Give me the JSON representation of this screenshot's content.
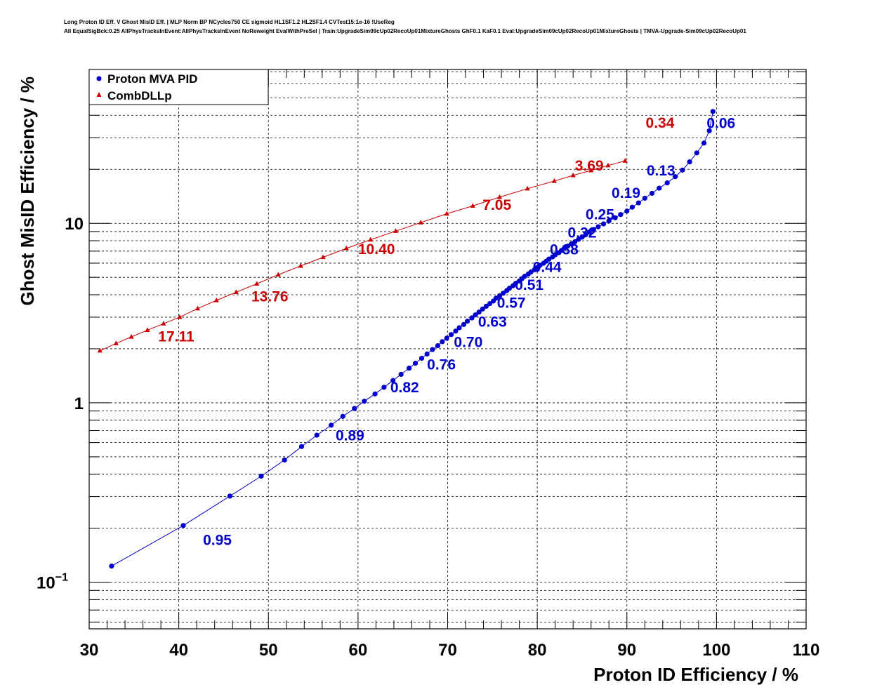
{
  "header": {
    "title_line1": "Long Proton ID Eff. V Ghost MisID Eff. | MLP Norm BP NCycles750 CE sigmoid HL1SF1.2 HL2SF1.4 CVTest15:1e-16 !UseReg",
    "title_line2": "All EqualSigBck:0.25 AllPhysTracksInEvent:AllPhysTracksInEvent NoReweight EvalWithPreSel | Train:UpgradeSim09cUp02RecoUp01MixtureGhosts GhF0.1 KaF0.1 Eval:UpgradeSim09cUp02RecoUp01MixtureGhosts | TMVA-Upgrade-Sim09cUp02RecoUp01"
  },
  "chart_data": {
    "type": "line",
    "xlabel": "Proton ID Efficiency / %",
    "ylabel": "Ghost MisID Efficiency / %",
    "xlim": [
      30,
      110
    ],
    "ylim": [
      0.055,
      72
    ],
    "yscale": "log",
    "grid": true,
    "legend_position": "top-left",
    "x_ticks": [
      "30",
      "40",
      "50",
      "60",
      "70",
      "80",
      "90",
      "100",
      "110"
    ],
    "y_ticks": [
      {
        "value": 0.1,
        "base": "10",
        "exp": "−1"
      },
      {
        "value": 1,
        "base": "1",
        "exp": ""
      },
      {
        "value": 10,
        "base": "10",
        "exp": ""
      }
    ],
    "series": [
      {
        "name": "Proton MVA PID",
        "color": "#0000cc",
        "marker": "circle",
        "points": [
          [
            32.5,
            0.123
          ],
          [
            40.5,
            0.207
          ],
          [
            45.7,
            0.302
          ],
          [
            49.2,
            0.39
          ],
          [
            51.8,
            0.48
          ],
          [
            53.7,
            0.57
          ],
          [
            55.4,
            0.66
          ],
          [
            57.0,
            0.75
          ],
          [
            58.3,
            0.84
          ],
          [
            59.6,
            0.93
          ],
          [
            60.7,
            1.02
          ],
          [
            61.9,
            1.12
          ],
          [
            62.9,
            1.22
          ],
          [
            63.9,
            1.33
          ],
          [
            64.8,
            1.44
          ],
          [
            65.7,
            1.56
          ],
          [
            66.4,
            1.66
          ],
          [
            67.1,
            1.77
          ],
          [
            67.7,
            1.87
          ],
          [
            68.3,
            1.98
          ],
          [
            68.9,
            2.08
          ],
          [
            69.4,
            2.19
          ],
          [
            69.9,
            2.29
          ],
          [
            70.4,
            2.4
          ],
          [
            70.9,
            2.51
          ],
          [
            71.3,
            2.62
          ],
          [
            71.8,
            2.73
          ],
          [
            72.2,
            2.85
          ],
          [
            72.7,
            2.97
          ],
          [
            73.1,
            3.09
          ],
          [
            73.5,
            3.2
          ],
          [
            73.9,
            3.33
          ],
          [
            74.3,
            3.45
          ],
          [
            74.7,
            3.57
          ],
          [
            75.1,
            3.69
          ],
          [
            75.4,
            3.83
          ],
          [
            75.8,
            3.95
          ],
          [
            76.2,
            4.08
          ],
          [
            76.6,
            4.22
          ],
          [
            76.9,
            4.35
          ],
          [
            77.3,
            4.49
          ],
          [
            77.6,
            4.63
          ],
          [
            78.0,
            4.77
          ],
          [
            78.3,
            4.92
          ],
          [
            78.6,
            5.07
          ],
          [
            79.0,
            5.22
          ],
          [
            79.3,
            5.36
          ],
          [
            79.7,
            5.52
          ],
          [
            80.0,
            5.67
          ],
          [
            80.3,
            5.83
          ],
          [
            80.7,
            5.99
          ],
          [
            81.0,
            6.15
          ],
          [
            81.3,
            6.32
          ],
          [
            81.7,
            6.5
          ],
          [
            82.0,
            6.68
          ],
          [
            82.4,
            6.86
          ],
          [
            82.7,
            7.06
          ],
          [
            83.0,
            7.26
          ],
          [
            83.4,
            7.46
          ],
          [
            83.8,
            7.68
          ],
          [
            84.2,
            7.9
          ],
          [
            84.6,
            8.14
          ],
          [
            85.0,
            8.38
          ],
          [
            85.4,
            8.64
          ],
          [
            85.8,
            8.93
          ],
          [
            86.3,
            9.24
          ],
          [
            86.8,
            9.57
          ],
          [
            87.4,
            9.93
          ],
          [
            88.0,
            10.32
          ],
          [
            88.7,
            10.74
          ],
          [
            89.3,
            11.19
          ],
          [
            90.0,
            11.7
          ],
          [
            90.6,
            12.3
          ],
          [
            91.3,
            13.0
          ],
          [
            92.0,
            13.8
          ],
          [
            92.8,
            14.7
          ],
          [
            93.6,
            15.7
          ],
          [
            94.5,
            16.8
          ],
          [
            95.4,
            18.2
          ],
          [
            96.2,
            19.8
          ],
          [
            97.0,
            22.0
          ],
          [
            97.8,
            24.7
          ],
          [
            98.6,
            28.0
          ],
          [
            99.2,
            32.8
          ],
          [
            99.6,
            42.0
          ]
        ]
      },
      {
        "name": "CombDLLp",
        "color": "#cc0000",
        "marker": "triangle",
        "points": [
          [
            31.2,
            1.95
          ],
          [
            33.0,
            2.14
          ],
          [
            34.7,
            2.33
          ],
          [
            36.5,
            2.54
          ],
          [
            38.3,
            2.76
          ],
          [
            40.1,
            3.0
          ],
          [
            42.1,
            3.35
          ],
          [
            44.2,
            3.72
          ],
          [
            46.4,
            4.13
          ],
          [
            48.7,
            4.6
          ],
          [
            51.1,
            5.17
          ],
          [
            53.6,
            5.79
          ],
          [
            56.1,
            6.47
          ],
          [
            58.7,
            7.25
          ],
          [
            61.4,
            8.1
          ],
          [
            64.2,
            9.05
          ],
          [
            67.0,
            10.1
          ],
          [
            69.9,
            11.3
          ],
          [
            72.8,
            12.5
          ],
          [
            75.8,
            14.0
          ],
          [
            78.9,
            15.6
          ],
          [
            81.9,
            17.2
          ],
          [
            84.0,
            18.5
          ],
          [
            86.0,
            19.7
          ],
          [
            87.9,
            21.0
          ],
          [
            89.8,
            22.3
          ]
        ]
      }
    ],
    "annotations": [
      {
        "text": "0.95",
        "x": 42.7,
        "y": 0.173,
        "series": 0
      },
      {
        "text": "0.89",
        "x": 57.5,
        "y": 0.664,
        "series": 0
      },
      {
        "text": "0.82",
        "x": 63.6,
        "y": 1.23,
        "series": 0
      },
      {
        "text": "0.76",
        "x": 67.7,
        "y": 1.65,
        "series": 0
      },
      {
        "text": "0.70",
        "x": 70.7,
        "y": 2.2,
        "series": 0
      },
      {
        "text": "0.63",
        "x": 73.4,
        "y": 2.85,
        "series": 0
      },
      {
        "text": "0.57",
        "x": 75.5,
        "y": 3.63,
        "series": 0
      },
      {
        "text": "0.51",
        "x": 77.5,
        "y": 4.58,
        "series": 0
      },
      {
        "text": "0.44",
        "x": 79.5,
        "y": 5.77,
        "series": 0
      },
      {
        "text": "0.38",
        "x": 81.4,
        "y": 7.2,
        "series": 0
      },
      {
        "text": "0.32",
        "x": 83.4,
        "y": 8.95,
        "series": 0
      },
      {
        "text": "0.25",
        "x": 85.4,
        "y": 11.3,
        "series": 0
      },
      {
        "text": "0.19",
        "x": 88.3,
        "y": 14.9,
        "series": 0
      },
      {
        "text": "0.13",
        "x": 92.2,
        "y": 19.9,
        "series": 0
      },
      {
        "text": "0.06",
        "x": 98.9,
        "y": 36.5,
        "series": 0
      },
      {
        "text": "17.11",
        "x": 37.7,
        "y": 2.36,
        "series": 1
      },
      {
        "text": "13.76",
        "x": 48.1,
        "y": 3.95,
        "series": 1
      },
      {
        "text": "10.40",
        "x": 60.0,
        "y": 7.25,
        "series": 1
      },
      {
        "text": "7.05",
        "x": 73.9,
        "y": 12.8,
        "series": 1
      },
      {
        "text": "3.69",
        "x": 84.2,
        "y": 21.2,
        "series": 1
      },
      {
        "text": "0.34",
        "x": 92.1,
        "y": 36.6,
        "series": 1
      }
    ]
  }
}
